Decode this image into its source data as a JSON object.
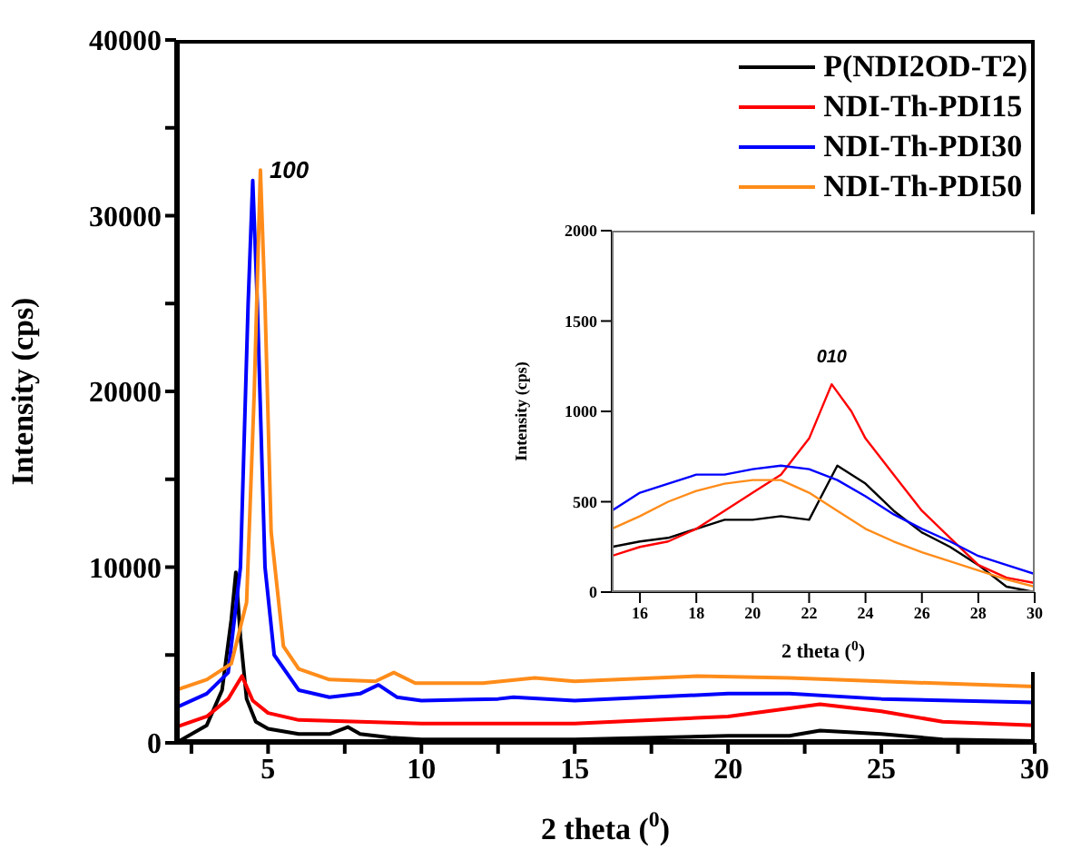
{
  "chart_data": [
    {
      "type": "line",
      "xlabel": "2 theta ($^{0}$)",
      "ylabel": "Intensity (cps)",
      "xlim": [
        2,
        30
      ],
      "ylim": [
        0,
        40000
      ],
      "xticks": [
        {
          "value": 2.5,
          "label": null
        },
        5,
        {
          "value": 7.5,
          "label": null
        },
        10,
        {
          "value": 12.5,
          "label": null
        },
        15,
        {
          "value": 17.5,
          "label": null
        },
        20,
        {
          "value": 22.5,
          "label": null
        },
        25,
        {
          "value": 27.5,
          "label": null
        },
        30
      ],
      "yticks": [
        0,
        {
          "value": 5000,
          "label": null
        },
        10000,
        {
          "value": 15000,
          "label": null
        },
        20000,
        {
          "value": 25000,
          "label": null
        },
        30000,
        {
          "value": 35000,
          "label": null
        },
        40000
      ],
      "legend": "top right",
      "grid": false,
      "annotations": [
        {
          "text": "100",
          "x": 4.75,
          "y": 32600
        }
      ],
      "series": [
        {
          "name": "P(NDI2OD-T2)",
          "color": "#000000",
          "x": [
            2,
            3,
            3.5,
            3.8,
            3.95,
            4.1,
            4.3,
            4.6,
            5,
            6,
            7,
            7.6,
            8,
            9,
            10,
            15,
            20,
            22,
            23,
            25,
            27,
            30
          ],
          "values": [
            0,
            1000,
            3000,
            7000,
            9700,
            6000,
            2500,
            1200,
            800,
            500,
            500,
            900,
            500,
            300,
            200,
            200,
            400,
            400,
            700,
            500,
            200,
            100
          ]
        },
        {
          "name": "NDI-Th-PDI15",
          "color": "#ff0000",
          "x": [
            2,
            3,
            3.7,
            4.15,
            4.5,
            5,
            6,
            10,
            15,
            20,
            23,
            25,
            27,
            30
          ],
          "values": [
            900,
            1500,
            2500,
            3800,
            2400,
            1700,
            1300,
            1100,
            1100,
            1500,
            2200,
            1800,
            1200,
            1000
          ]
        },
        {
          "name": "NDI-Th-PDI30",
          "color": "#0000ff",
          "x": [
            2,
            3,
            3.7,
            4.1,
            4.35,
            4.5,
            4.65,
            4.9,
            5.2,
            6,
            7,
            8,
            8.6,
            9.2,
            10,
            12.5,
            13,
            15,
            20,
            22,
            25,
            30
          ],
          "values": [
            2000,
            2800,
            4000,
            10000,
            25000,
            32000,
            25000,
            10000,
            5000,
            3000,
            2600,
            2800,
            3300,
            2600,
            2400,
            2500,
            2600,
            2400,
            2800,
            2800,
            2500,
            2300
          ]
        },
        {
          "name": "NDI-Th-PDI50",
          "color": "#ff8c1a",
          "x": [
            2,
            3,
            3.8,
            4.3,
            4.55,
            4.75,
            4.9,
            5.1,
            5.5,
            6,
            7,
            8.5,
            9.1,
            9.8,
            12,
            13.7,
            15,
            19,
            22,
            25,
            30
          ],
          "values": [
            3000,
            3600,
            4500,
            8000,
            20000,
            32600,
            25000,
            12000,
            5500,
            4200,
            3600,
            3500,
            4000,
            3400,
            3400,
            3700,
            3500,
            3800,
            3700,
            3500,
            3200
          ]
        }
      ]
    },
    {
      "type": "line",
      "xlabel": "2 theta ($^{0}$)",
      "ylabel": "Intensity (cps)",
      "xlim": [
        15,
        30
      ],
      "ylim": [
        0,
        2000
      ],
      "xticks": [
        16,
        18,
        20,
        22,
        24,
        26,
        28,
        30
      ],
      "yticks": [
        0,
        500,
        1000,
        1500,
        2000
      ],
      "grid": false,
      "annotations": [
        {
          "text": "010",
          "x": 22.8,
          "y": 1150
        }
      ],
      "series": [
        {
          "color": "#000000",
          "x": [
            15,
            16,
            17,
            18,
            19,
            20,
            21,
            22,
            22.5,
            23,
            24,
            25,
            26,
            27,
            28,
            29,
            30
          ],
          "values": [
            250,
            280,
            300,
            350,
            400,
            400,
            420,
            400,
            550,
            700,
            600,
            450,
            330,
            250,
            150,
            30,
            0
          ]
        },
        {
          "color": "#ff0000",
          "x": [
            15,
            16,
            17,
            18,
            19,
            20,
            21,
            22,
            22.8,
            23.5,
            24,
            25,
            26,
            27,
            28,
            29,
            30
          ],
          "values": [
            200,
            250,
            280,
            350,
            450,
            550,
            650,
            850,
            1150,
            1000,
            850,
            650,
            450,
            300,
            150,
            80,
            50
          ]
        },
        {
          "color": "#0000ff",
          "x": [
            15,
            16,
            17,
            18,
            19,
            20,
            21,
            22,
            23,
            24,
            25,
            26,
            27,
            28,
            29,
            30
          ],
          "values": [
            450,
            550,
            600,
            650,
            650,
            680,
            700,
            680,
            620,
            530,
            430,
            350,
            280,
            200,
            150,
            100
          ]
        },
        {
          "color": "#ff8c1a",
          "x": [
            15,
            16,
            17,
            18,
            19,
            20,
            21,
            22,
            23,
            24,
            25,
            26,
            27,
            28,
            29,
            30
          ],
          "values": [
            350,
            420,
            500,
            560,
            600,
            620,
            620,
            550,
            450,
            350,
            280,
            220,
            170,
            120,
            70,
            30
          ]
        }
      ]
    }
  ]
}
